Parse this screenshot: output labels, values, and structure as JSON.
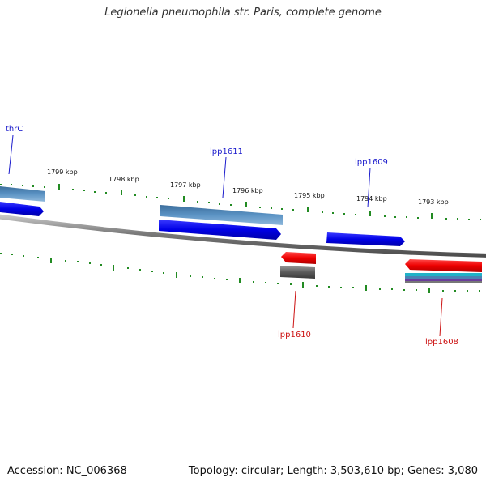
{
  "title": "Legionella pneumophila str. Paris, complete genome",
  "footer": {
    "accession": "Accession: NC_006368",
    "topology": "Topology: circular; Length: 3,503,610 bp; Genes: 3,080"
  },
  "ticks": [
    "1799 kbp",
    "1798 kbp",
    "1797 kbp",
    "1796 kbp",
    "1795 kbp",
    "1794 kbp",
    "1793 kbp"
  ],
  "genes": [
    {
      "id": "thrC",
      "label": "thrC",
      "strand": "forward",
      "color": "#1a1acc"
    },
    {
      "id": "lpp1611",
      "label": "lpp1611",
      "strand": "forward",
      "color": "#1a1acc"
    },
    {
      "id": "lpp1609",
      "label": "lpp1609",
      "strand": "forward",
      "color": "#1a1acc"
    },
    {
      "id": "lpp1610",
      "label": "lpp1610",
      "strand": "reverse",
      "color": "#cc1111"
    },
    {
      "id": "lpp1608",
      "label": "lpp1608",
      "strand": "reverse",
      "color": "#cc1111"
    }
  ],
  "colors": {
    "forward_gene": "#0a0ae6",
    "reverse_gene": "#ee0000",
    "cds_feature": "#4a82b4",
    "tick_marks": "#228b22",
    "backbone": "#888888",
    "rna_feature": "#555555",
    "cyan_feature": "#20b2c8",
    "purple_feature": "#6a3d9a"
  }
}
